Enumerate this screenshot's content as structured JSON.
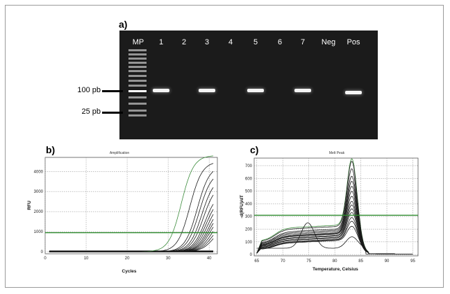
{
  "figure": {
    "panel_a_label": "a)",
    "panel_b_label": "b)",
    "panel_c_label": "c)"
  },
  "gel": {
    "lanes": [
      "MP",
      "1",
      "2",
      "3",
      "4",
      "5",
      "6",
      "7",
      "Neg",
      "Pos"
    ],
    "marker_labels": [
      "100 pb",
      "25 pb"
    ],
    "band_present": [
      false,
      true,
      false,
      true,
      false,
      true,
      false,
      true,
      false,
      true
    ],
    "colors": {
      "background": "#1b1b1b",
      "band": "#f4f4f4"
    }
  },
  "chart_data": [
    {
      "type": "line",
      "title": "Amplification",
      "xlabel": "Cycles",
      "ylabel": "RFU",
      "xlim": [
        0,
        42
      ],
      "ylim": [
        -100,
        4700
      ],
      "xticks": [
        0,
        10,
        20,
        30,
        40
      ],
      "yticks": [
        0,
        1000,
        2000,
        3000,
        4000
      ],
      "grid": true,
      "threshold": 950,
      "x_range": [
        1,
        41
      ],
      "series_sigmoid": [
        {
          "midpoint": 33.2,
          "plateau": 4800,
          "color": "#3c8c3c"
        },
        {
          "midpoint": 35.3,
          "plateau": 4500,
          "color": "#1a1a1a"
        },
        {
          "midpoint": 37.1,
          "plateau": 4300,
          "color": "#1a1a1a"
        },
        {
          "midpoint": 37.6,
          "plateau": 4000,
          "color": "#1a1a1a"
        },
        {
          "midpoint": 38.2,
          "plateau": 3700,
          "color": "#1a1a1a"
        },
        {
          "midpoint": 38.6,
          "plateau": 3400,
          "color": "#1a1a1a"
        },
        {
          "midpoint": 39.0,
          "plateau": 3000,
          "color": "#1a1a1a"
        },
        {
          "midpoint": 39.3,
          "plateau": 2800,
          "color": "#1a1a1a"
        },
        {
          "midpoint": 39.6,
          "plateau": 2600,
          "color": "#1a1a1a"
        },
        {
          "midpoint": 39.9,
          "plateau": 2400,
          "color": "#1a1a1a"
        },
        {
          "midpoint": 40.1,
          "plateau": 2200,
          "color": "#1a1a1a"
        },
        {
          "midpoint": 40.3,
          "plateau": 2000,
          "color": "#1a1a1a"
        },
        {
          "midpoint": 40.6,
          "plateau": 1800,
          "color": "#1a1a1a"
        },
        {
          "midpoint": 40.9,
          "plateau": 1600,
          "color": "#1a1a1a"
        },
        {
          "midpoint": 41.2,
          "plateau": 1400,
          "color": "#1a1a1a"
        }
      ],
      "series_flat": [
        {
          "level": 30,
          "color": "#111111"
        },
        {
          "level": 0,
          "color": "#111111"
        }
      ],
      "colors": {
        "threshold": "#2e8b2e",
        "grid": "#9a9a9a"
      }
    },
    {
      "type": "line",
      "title": "Melt Peak",
      "xlabel": "Temperature, Celsius",
      "ylabel": "-d(RFU)/dT",
      "xlim": [
        64.5,
        96
      ],
      "ylim": [
        -10,
        760
      ],
      "xticks": [
        65,
        70,
        75,
        80,
        85,
        90,
        95
      ],
      "yticks": [
        0,
        100,
        200,
        300,
        400,
        500,
        600,
        700
      ],
      "grid": true,
      "threshold": 310,
      "x_range": [
        65,
        95
      ],
      "peak_at": 83.3,
      "series_melt": [
        {
          "peak": 740,
          "shoulder": 210,
          "color": "#3c8c3c"
        },
        {
          "peak": 720,
          "shoulder": 200,
          "color": "#1a1a1a"
        },
        {
          "peak": 660,
          "shoulder": 180,
          "color": "#1a1a1a"
        },
        {
          "peak": 600,
          "shoulder": 170,
          "color": "#1a1a1a"
        },
        {
          "peak": 560,
          "shoulder": 160,
          "color": "#1a1a1a"
        },
        {
          "peak": 520,
          "shoulder": 150,
          "color": "#1a1a1a"
        },
        {
          "peak": 480,
          "shoulder": 145,
          "color": "#1a1a1a"
        },
        {
          "peak": 440,
          "shoulder": 140,
          "color": "#1a1a1a"
        },
        {
          "peak": 400,
          "shoulder": 130,
          "color": "#1a1a1a"
        },
        {
          "peak": 370,
          "shoulder": 125,
          "color": "#1a1a1a"
        },
        {
          "peak": 340,
          "shoulder": 115,
          "color": "#1a1a1a"
        },
        {
          "peak": 310,
          "shoulder": 110,
          "color": "#1a1a1a"
        },
        {
          "peak": 270,
          "shoulder": 100,
          "color": "#1a1a1a"
        },
        {
          "peak": 240,
          "shoulder": 95,
          "color": "#1a1a1a"
        },
        {
          "peak": 200,
          "shoulder": 90,
          "color": "#1a1a1a"
        }
      ],
      "series_bump": {
        "center": 74.8,
        "height": 200,
        "color": "#1a1a1a"
      },
      "colors": {
        "threshold": "#2e8b2e",
        "grid": "#9a9a9a"
      }
    }
  ]
}
